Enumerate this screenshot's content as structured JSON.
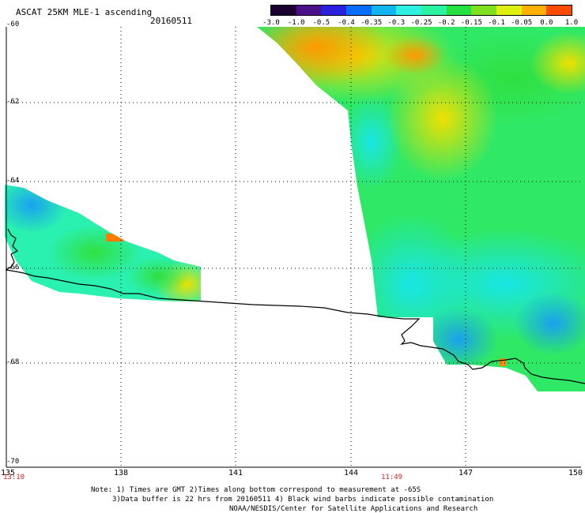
{
  "header": {
    "title": "ASCAT 25KM MLE-1 ascending",
    "date": "20160511"
  },
  "colorbar": {
    "labels": [
      "-3.0",
      "-1.0",
      "-0.5",
      "-0.4",
      "-0.35",
      "-0.3",
      "-0.25",
      "-0.2",
      "-0.15",
      "-0.1",
      "-0.05",
      "0.0",
      "1.0"
    ],
    "colors": [
      "#1a0030",
      "#4b0f8a",
      "#2b1fe0",
      "#0a6cff",
      "#13b5f0",
      "#2ef0e0",
      "#2af2a0",
      "#25e040",
      "#7fe020",
      "#dff010",
      "#ffb000",
      "#ff4a00"
    ]
  },
  "axes": {
    "x_ticks": [
      "135",
      "138",
      "141",
      "144",
      "147",
      "150"
    ],
    "y_ticks": [
      "-60",
      "-62",
      "-64",
      "-66",
      "-68",
      "-70"
    ],
    "time_labels": {
      "left": "13:10",
      "mid": "11:49"
    },
    "lon_range": [
      135,
      150
    ],
    "lat_range": [
      -70,
      -60
    ]
  },
  "notes": {
    "line1": "Note: 1) Times are GMT 2)Times along bottom correspond to measurement at -65S",
    "line2": "3)Data buffer is 22 hrs from 20160511 4) Black wind barbs indicate possible contamination",
    "line3": "NOAA/NESDIS/Center for Satellite Applications and Research"
  },
  "colors": {
    "coastline": "#000000",
    "grid": "#000000",
    "time_label": "#e02020"
  }
}
